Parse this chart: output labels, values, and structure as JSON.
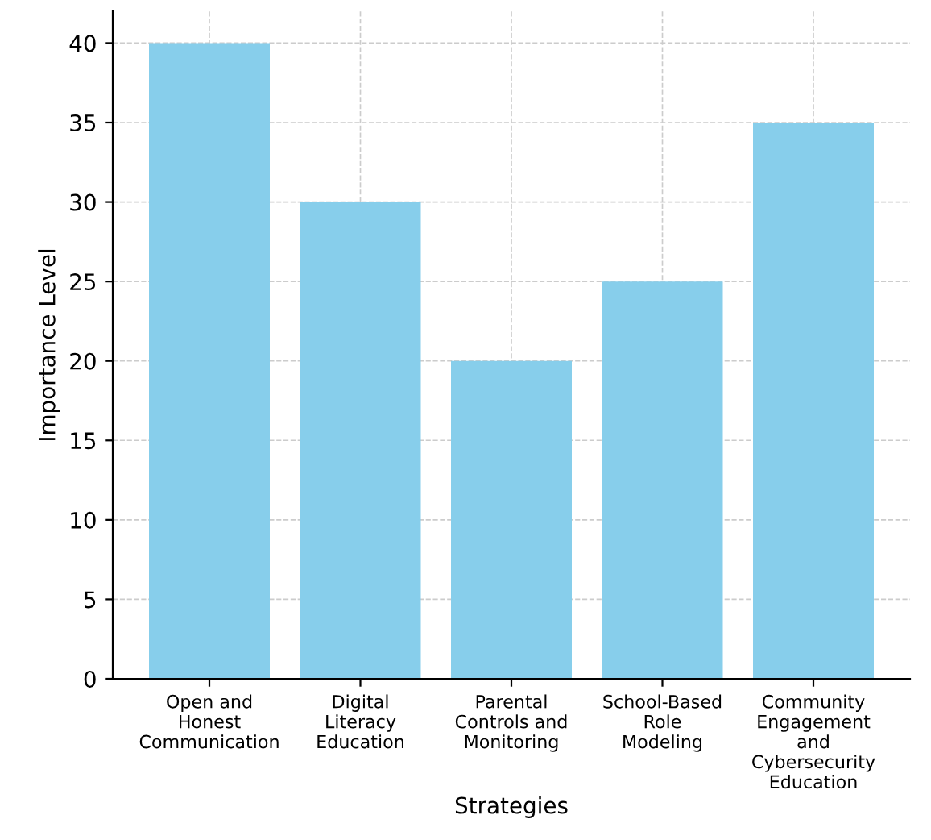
{
  "chart_data": {
    "type": "bar",
    "xlabel": "Strategies",
    "ylabel": "Importance Level",
    "categories": [
      "Open and Honest Communication",
      "Digital Literacy Education",
      "Parental Controls and Monitoring",
      "School-Based Role Modeling",
      "Community Engagement and Cybersecurity Education"
    ],
    "values": [
      40,
      30,
      20,
      25,
      35
    ],
    "color": "#87ceeb",
    "ylim": [
      0,
      42
    ],
    "yticks": [
      0,
      5,
      10,
      15,
      20,
      25,
      30,
      35,
      40
    ],
    "grid": true,
    "line_style": "dashed"
  }
}
